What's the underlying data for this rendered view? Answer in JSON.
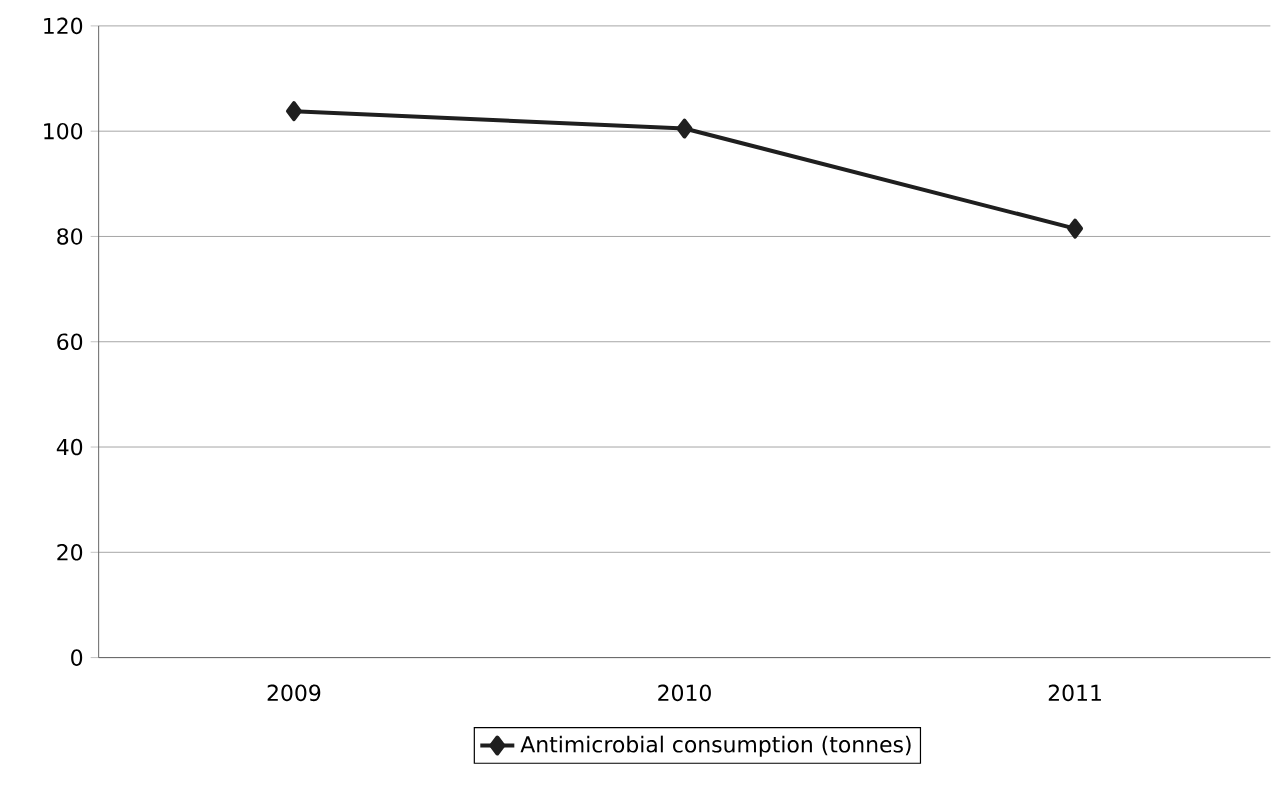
{
  "chart_data": {
    "type": "line",
    "categories": [
      "2009",
      "2010",
      "2011"
    ],
    "series": [
      {
        "name": "Antimicrobial consumption (tonnes)",
        "color": "#1f1f1f",
        "values": [
          103.8,
          100.5,
          81.5
        ]
      }
    ],
    "ylim": [
      0,
      120
    ],
    "yticks": [
      0,
      20,
      40,
      60,
      80,
      100,
      120
    ],
    "grid": "y",
    "legend": "bottom",
    "marker": "diamond",
    "line_style": "solid"
  }
}
